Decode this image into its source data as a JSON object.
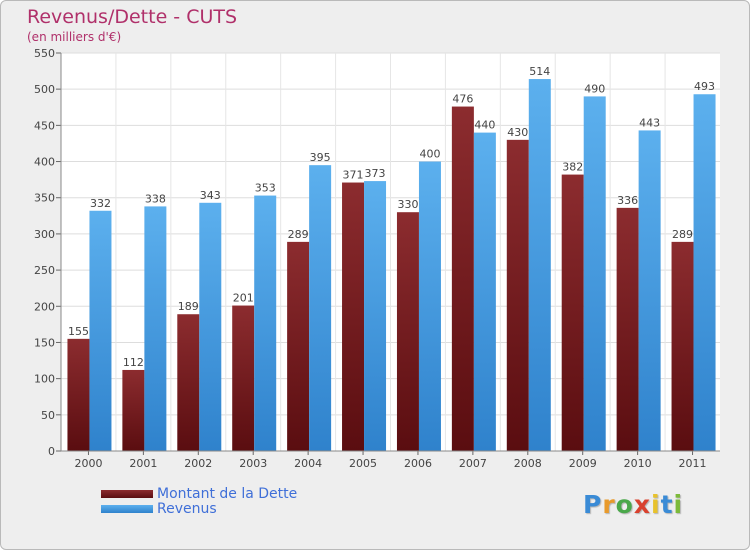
{
  "chart_data": {
    "type": "bar",
    "title": "Revenus/Dette - CUTS",
    "subtitle": "(en milliers d'€)",
    "categories": [
      "2000",
      "2001",
      "2002",
      "2003",
      "2004",
      "2005",
      "2006",
      "2007",
      "2008",
      "2009",
      "2010",
      "2011"
    ],
    "series": [
      {
        "name": "Montant de la Dette",
        "values": [
          155,
          112,
          189,
          201,
          289,
          371,
          330,
          476,
          430,
          382,
          336,
          289
        ],
        "color": "#7a1f22"
      },
      {
        "name": "Revenus",
        "values": [
          332,
          338,
          343,
          353,
          395,
          373,
          400,
          440,
          514,
          490,
          443,
          493
        ],
        "color": "#4ea3e3"
      }
    ],
    "ylim": [
      0,
      550
    ],
    "yticks": [
      0,
      50,
      100,
      150,
      200,
      250,
      300,
      350,
      400,
      450,
      500,
      550
    ],
    "grid": true,
    "legend_position": "bottom-left"
  },
  "logo": {
    "letters": [
      {
        "char": "P",
        "color": "#3a8bd6"
      },
      {
        "char": "r",
        "color": "#e89a2c"
      },
      {
        "char": "o",
        "color": "#4aa84a"
      },
      {
        "char": "x",
        "color": "#d9412e"
      },
      {
        "char": "i",
        "color": "#e8c22c"
      },
      {
        "char": "t",
        "color": "#3a8bd6"
      },
      {
        "char": "i",
        "color": "#7cba3a"
      }
    ]
  }
}
